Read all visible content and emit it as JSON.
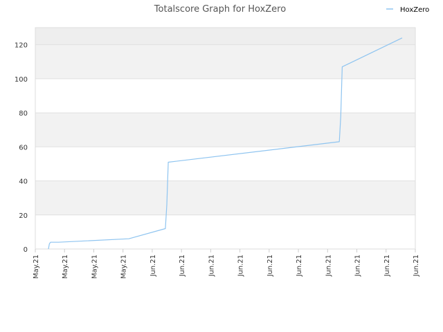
{
  "chart_data": {
    "type": "line",
    "title": "Totalscore Graph for HoxZero",
    "xlabel": "",
    "ylabel": "",
    "x_tick_labels": [
      "May.21",
      "May.21",
      "May.21",
      "May.21",
      "Jun.21",
      "Jun.21",
      "Jun.21",
      "Jun.21",
      "Jun.21",
      "Jun.21",
      "Jun.21",
      "Jun.21",
      "Jun.21",
      "Jun.21"
    ],
    "y_ticks": [
      0,
      20,
      40,
      60,
      80,
      100,
      120
    ],
    "ylim": [
      0,
      130
    ],
    "xlim": [
      0,
      13
    ],
    "grid": true,
    "band_colors": [
      "#ffffff",
      "#f2f2f2"
    ],
    "top_band_color": "#eeeeee",
    "legend_position": "top-right",
    "series": [
      {
        "name": "HoxZero",
        "color": "#8ec4f0",
        "x": [
          0.45,
          0.48,
          0.52,
          0.8,
          3.2,
          4.45,
          4.5,
          4.55,
          10.4,
          10.45,
          10.5,
          12.55
        ],
        "y": [
          0,
          3,
          4,
          4,
          6,
          12,
          26,
          51,
          63,
          78,
          107,
          124
        ]
      }
    ]
  }
}
